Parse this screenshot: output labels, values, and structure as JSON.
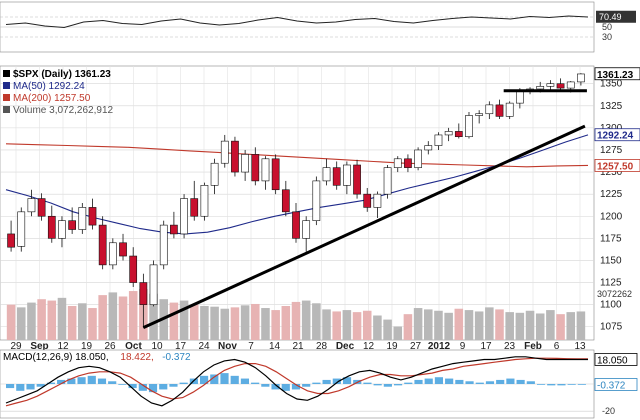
{
  "chart_data": [
    {
      "type": "line",
      "name": "rsi_panel",
      "ylim": [
        0,
        100
      ],
      "yticks": [
        30,
        50,
        70
      ],
      "last_value": "70.49",
      "series": [
        {
          "values": [
            55,
            58,
            52,
            49,
            60,
            63,
            57,
            55,
            62,
            66,
            58,
            54,
            57,
            64,
            69,
            62,
            58,
            60,
            65,
            67,
            61,
            58,
            63,
            67,
            70,
            68,
            66,
            71,
            69,
            72,
            70
          ]
        }
      ]
    },
    {
      "type": "candlestick",
      "name": "price_panel",
      "title": "$SPX (Daily) 1361.23",
      "ylim": [
        1060,
        1370
      ],
      "yticks": [
        1075,
        1100,
        1125,
        1150,
        1175,
        1200,
        1225,
        1250,
        1275,
        1300,
        1325,
        1350
      ],
      "y_tick_labels": [
        "1075",
        "1100",
        "1125",
        "1150",
        "1175",
        "1200",
        "1225",
        "1250",
        "1275",
        "1300",
        "1325",
        "1350"
      ],
      "right_labels": [
        {
          "value": 1361.23,
          "text": "1361.23",
          "color": "#000000"
        },
        {
          "value": 1292.24,
          "text": "1292.24",
          "color": "#1f2a8a"
        },
        {
          "value": 1257.5,
          "text": "1257.50",
          "color": "#c0392b"
        }
      ],
      "x_ticks": [
        {
          "label": "29",
          "month": false
        },
        {
          "label": "Sep",
          "month": true
        },
        {
          "label": "12",
          "month": false
        },
        {
          "label": "19",
          "month": false
        },
        {
          "label": "26",
          "month": false
        },
        {
          "label": "Oct",
          "month": true
        },
        {
          "label": "10",
          "month": false
        },
        {
          "label": "17",
          "month": false
        },
        {
          "label": "24",
          "month": false
        },
        {
          "label": "Nov",
          "month": true
        },
        {
          "label": "7",
          "month": false
        },
        {
          "label": "14",
          "month": false
        },
        {
          "label": "21",
          "month": false
        },
        {
          "label": "28",
          "month": false
        },
        {
          "label": "Dec",
          "month": true
        },
        {
          "label": "12",
          "month": false
        },
        {
          "label": "19",
          "month": false
        },
        {
          "label": "27",
          "month": false
        },
        {
          "label": "2012",
          "month": true
        },
        {
          "label": "9",
          "month": false
        },
        {
          "label": "17",
          "month": false
        },
        {
          "label": "23",
          "month": false
        },
        {
          "label": "Feb",
          "month": true
        },
        {
          "label": "6",
          "month": false
        },
        {
          "label": "13",
          "month": false
        }
      ],
      "legend": [
        {
          "text": "$SPX (Daily) 1361.23",
          "color": "#000000"
        },
        {
          "text": "MA(50) 1292.24",
          "color": "#1f2a8a"
        },
        {
          "text": "MA(200) 1257.50",
          "color": "#c0392b"
        },
        {
          "text": "Volume 3,072,262,912",
          "color": "#555555"
        }
      ],
      "volume_label": "3072262",
      "ohlc": [
        {
          "o": 1180,
          "h": 1195,
          "l": 1160,
          "c": 1165
        },
        {
          "o": 1166,
          "h": 1210,
          "l": 1160,
          "c": 1205
        },
        {
          "o": 1205,
          "h": 1230,
          "l": 1200,
          "c": 1220
        },
        {
          "o": 1220,
          "h": 1226,
          "l": 1195,
          "c": 1200
        },
        {
          "o": 1200,
          "h": 1212,
          "l": 1170,
          "c": 1175
        },
        {
          "o": 1175,
          "h": 1200,
          "l": 1165,
          "c": 1195
        },
        {
          "o": 1195,
          "h": 1210,
          "l": 1180,
          "c": 1185
        },
        {
          "o": 1185,
          "h": 1215,
          "l": 1180,
          "c": 1210
        },
        {
          "o": 1210,
          "h": 1220,
          "l": 1185,
          "c": 1190
        },
        {
          "o": 1190,
          "h": 1200,
          "l": 1140,
          "c": 1145
        },
        {
          "o": 1145,
          "h": 1175,
          "l": 1140,
          "c": 1170
        },
        {
          "o": 1170,
          "h": 1180,
          "l": 1150,
          "c": 1155
        },
        {
          "o": 1155,
          "h": 1165,
          "l": 1120,
          "c": 1125
        },
        {
          "o": 1125,
          "h": 1135,
          "l": 1074,
          "c": 1100
        },
        {
          "o": 1100,
          "h": 1150,
          "l": 1098,
          "c": 1145
        },
        {
          "o": 1145,
          "h": 1195,
          "l": 1140,
          "c": 1190
        },
        {
          "o": 1190,
          "h": 1205,
          "l": 1175,
          "c": 1180
        },
        {
          "o": 1180,
          "h": 1225,
          "l": 1175,
          "c": 1220
        },
        {
          "o": 1220,
          "h": 1240,
          "l": 1195,
          "c": 1200
        },
        {
          "o": 1200,
          "h": 1238,
          "l": 1195,
          "c": 1235
        },
        {
          "o": 1235,
          "h": 1265,
          "l": 1225,
          "c": 1260
        },
        {
          "o": 1260,
          "h": 1292,
          "l": 1255,
          "c": 1285
        },
        {
          "o": 1285,
          "h": 1290,
          "l": 1245,
          "c": 1250
        },
        {
          "o": 1250,
          "h": 1275,
          "l": 1240,
          "c": 1270
        },
        {
          "o": 1270,
          "h": 1278,
          "l": 1235,
          "c": 1240
        },
        {
          "o": 1240,
          "h": 1268,
          "l": 1230,
          "c": 1265
        },
        {
          "o": 1265,
          "h": 1270,
          "l": 1225,
          "c": 1230
        },
        {
          "o": 1230,
          "h": 1240,
          "l": 1200,
          "c": 1205
        },
        {
          "o": 1205,
          "h": 1215,
          "l": 1170,
          "c": 1175
        },
        {
          "o": 1175,
          "h": 1200,
          "l": 1160,
          "c": 1195
        },
        {
          "o": 1195,
          "h": 1245,
          "l": 1190,
          "c": 1240
        },
        {
          "o": 1240,
          "h": 1265,
          "l": 1235,
          "c": 1255
        },
        {
          "o": 1255,
          "h": 1262,
          "l": 1230,
          "c": 1235
        },
        {
          "o": 1235,
          "h": 1262,
          "l": 1225,
          "c": 1258
        },
        {
          "o": 1258,
          "h": 1264,
          "l": 1220,
          "c": 1225
        },
        {
          "o": 1225,
          "h": 1232,
          "l": 1205,
          "c": 1210
        },
        {
          "o": 1210,
          "h": 1228,
          "l": 1198,
          "c": 1225
        },
        {
          "o": 1225,
          "h": 1258,
          "l": 1220,
          "c": 1255
        },
        {
          "o": 1255,
          "h": 1268,
          "l": 1250,
          "c": 1265
        },
        {
          "o": 1265,
          "h": 1270,
          "l": 1250,
          "c": 1255
        },
        {
          "o": 1255,
          "h": 1278,
          "l": 1252,
          "c": 1275
        },
        {
          "o": 1275,
          "h": 1285,
          "l": 1270,
          "c": 1280
        },
        {
          "o": 1280,
          "h": 1295,
          "l": 1275,
          "c": 1292
        },
        {
          "o": 1292,
          "h": 1300,
          "l": 1285,
          "c": 1296
        },
        {
          "o": 1296,
          "h": 1305,
          "l": 1288,
          "c": 1290
        },
        {
          "o": 1290,
          "h": 1318,
          "l": 1288,
          "c": 1314
        },
        {
          "o": 1314,
          "h": 1320,
          "l": 1305,
          "c": 1316
        },
        {
          "o": 1316,
          "h": 1330,
          "l": 1310,
          "c": 1326
        },
        {
          "o": 1326,
          "h": 1332,
          "l": 1310,
          "c": 1313
        },
        {
          "o": 1313,
          "h": 1330,
          "l": 1310,
          "c": 1328
        },
        {
          "o": 1328,
          "h": 1345,
          "l": 1322,
          "c": 1342
        },
        {
          "o": 1342,
          "h": 1346,
          "l": 1338,
          "c": 1344
        },
        {
          "o": 1344,
          "h": 1352,
          "l": 1340,
          "c": 1347
        },
        {
          "o": 1347,
          "h": 1354,
          "l": 1341,
          "c": 1350
        },
        {
          "o": 1350,
          "h": 1356,
          "l": 1342,
          "c": 1345
        },
        {
          "o": 1345,
          "h": 1353,
          "l": 1340,
          "c": 1352
        },
        {
          "o": 1352,
          "h": 1362,
          "l": 1348,
          "c": 1361
        }
      ],
      "volume": [
        52,
        48,
        55,
        60,
        58,
        62,
        50,
        54,
        47,
        66,
        70,
        64,
        72,
        75,
        68,
        60,
        55,
        58,
        52,
        50,
        49,
        46,
        48,
        51,
        53,
        47,
        44,
        50,
        56,
        58,
        54,
        45,
        42,
        44,
        41,
        43,
        36,
        30,
        20,
        38,
        47,
        45,
        43,
        40,
        46,
        44,
        42,
        48,
        45,
        41,
        40,
        43,
        39,
        44,
        38,
        41,
        42
      ],
      "ma50": [
        1230,
        1223,
        1215,
        1205,
        1198,
        1192,
        1186,
        1182,
        1180,
        1182,
        1187,
        1194,
        1200,
        1205,
        1210,
        1214,
        1218,
        1225,
        1232,
        1238,
        1244,
        1251,
        1258,
        1266,
        1275,
        1284,
        1292
      ],
      "ma200": [
        1282,
        1281,
        1280,
        1279,
        1278,
        1276,
        1274,
        1272,
        1270,
        1268,
        1266,
        1264,
        1262,
        1260,
        1259,
        1258,
        1257,
        1256,
        1257,
        1257.5
      ],
      "trendline_support": {
        "from": {
          "index": 13,
          "value": 1074
        },
        "to": {
          "index": 56,
          "value": 1302
        }
      },
      "trendline_resistance": {
        "from": {
          "index": 49,
          "value": 1342
        },
        "to": {
          "index": 56,
          "value": 1342
        }
      }
    },
    {
      "type": "bar+line",
      "name": "macd_panel",
      "title": "MACD(12,26,9) 18.050, 18.422, -0.372",
      "label_parts": [
        {
          "text": "MACD(12,26,9) 18.050,",
          "color": "#000000"
        },
        {
          "text": "18.422,",
          "color": "#c0392b"
        },
        {
          "text": "-0.372",
          "color": "#2e86c1"
        }
      ],
      "ylim": [
        -25,
        25
      ],
      "yticks": [
        0,
        -20
      ],
      "right_labels": [
        {
          "value": 18.05,
          "text": "18.050",
          "color": "#000000"
        },
        {
          "value": -0.372,
          "text": "-0.372",
          "color": "#2e86c1"
        }
      ],
      "histogram": [
        -3,
        -5,
        -4,
        -2,
        1,
        3,
        4,
        5,
        6,
        4,
        2,
        0,
        -3,
        -5,
        -6,
        -4,
        -2,
        1,
        4,
        6,
        7,
        8,
        6,
        4,
        1,
        -2,
        -4,
        -5,
        -4,
        -2,
        1,
        3,
        4,
        5,
        3,
        1,
        -1,
        -2,
        -1,
        1,
        3,
        4,
        5,
        4,
        3,
        2,
        1,
        2,
        3,
        4,
        3,
        2,
        0,
        -1,
        -1,
        0,
        -0.4
      ],
      "macd": [
        -14,
        -11,
        -8,
        -5,
        0,
        5,
        9,
        12,
        13,
        12,
        9,
        5,
        -2,
        -9,
        -14,
        -16,
        -12,
        -6,
        2,
        9,
        14,
        17,
        18,
        16,
        12,
        6,
        -1,
        -7,
        -11,
        -12,
        -9,
        -4,
        2,
        6,
        9,
        10,
        8,
        5,
        3,
        5,
        8,
        11,
        13,
        15,
        16,
        17,
        18,
        18,
        19,
        20,
        20,
        19,
        18,
        18,
        18,
        18,
        18.05
      ],
      "signal": [
        -16,
        -14,
        -12,
        -9,
        -5,
        -1,
        3,
        6,
        8,
        9,
        9,
        8,
        5,
        0,
        -5,
        -9,
        -11,
        -10,
        -6,
        -1,
        5,
        10,
        13,
        15,
        15,
        13,
        9,
        4,
        -1,
        -5,
        -7,
        -7,
        -5,
        -2,
        2,
        5,
        7,
        7,
        6,
        6,
        7,
        8,
        10,
        11,
        13,
        14,
        15,
        16,
        17,
        18,
        18.5,
        19,
        19,
        18.8,
        18.6,
        18.5,
        18.422
      ]
    }
  ]
}
